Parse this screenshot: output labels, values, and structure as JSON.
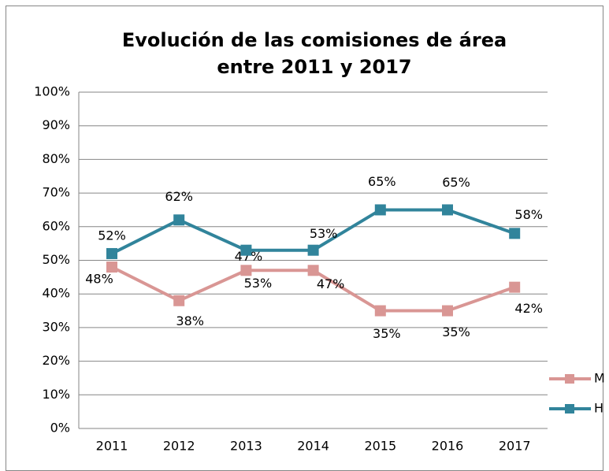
{
  "chart_data": {
    "type": "line",
    "title": [
      "Evolución de las comisiones de área",
      "entre 2011 y 2017"
    ],
    "categories": [
      "2011",
      "2012",
      "2013",
      "2014",
      "2015",
      "2016",
      "2017"
    ],
    "series": [
      {
        "name": "M",
        "color": "#d99694",
        "values": [
          48,
          38,
          47,
          47,
          35,
          35,
          42
        ],
        "value_labels": [
          "48%",
          "38%",
          "47%",
          "47%",
          "35%",
          "35%",
          "42%"
        ]
      },
      {
        "name": "H",
        "color": "#31849b",
        "values": [
          52,
          62,
          53,
          53,
          65,
          65,
          58
        ],
        "value_labels": [
          "52%",
          "62%",
          "53%",
          "53%",
          "65%",
          "65%",
          "58%"
        ]
      }
    ],
    "ylim": [
      0,
      100
    ],
    "yticks": [
      {
        "value": 0,
        "label": "0%"
      },
      {
        "value": 10,
        "label": "10%"
      },
      {
        "value": 20,
        "label": "20%"
      },
      {
        "value": 30,
        "label": "30%"
      },
      {
        "value": 40,
        "label": "40%"
      },
      {
        "value": 50,
        "label": "50%"
      },
      {
        "value": 60,
        "label": "60%"
      },
      {
        "value": 70,
        "label": "70%"
      },
      {
        "value": 80,
        "label": "80%"
      },
      {
        "value": 90,
        "label": "90%"
      },
      {
        "value": 100,
        "label": "100%"
      }
    ],
    "grid": true,
    "legend": "right"
  }
}
